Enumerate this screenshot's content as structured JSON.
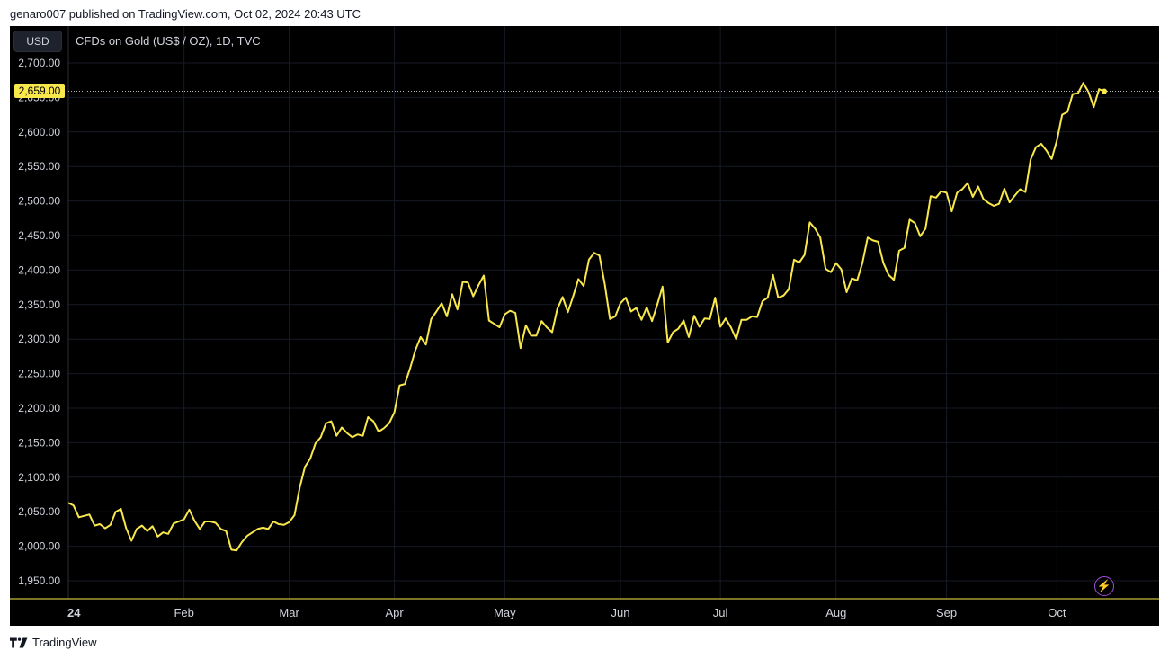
{
  "header": {
    "text": "genaro007 published on TradingView.com, Oct 02, 2024 20:43 UTC"
  },
  "toolbar": {
    "currency_label": "USD"
  },
  "legend": {
    "title": "CFDs on Gold (US$ / OZ), 1D, TVC"
  },
  "last_price": {
    "label": "2,659.00",
    "value": 2659
  },
  "footer": {
    "brand": "TradingView"
  },
  "colors": {
    "line": "#f9e84c",
    "background": "#000000",
    "axis_text": "#d1d4dc",
    "bolt": "#a04fd6"
  },
  "icons": {
    "bolt": "lightning-icon",
    "logo": "tradingview-logo-icon"
  },
  "chart_data": {
    "type": "line",
    "title": "CFDs on Gold (US$ / OZ), 1D, TVC",
    "xlabel": "",
    "ylabel": "",
    "ylim": [
      1930,
      2720
    ],
    "y_ticks": [
      1950,
      2000,
      2050,
      2100,
      2150,
      2200,
      2250,
      2300,
      2350,
      2400,
      2450,
      2500,
      2550,
      2600,
      2650,
      2700
    ],
    "y_tick_labels": [
      "1,950.00",
      "2,000.00",
      "2,050.00",
      "2,100.00",
      "2,150.00",
      "2,200.00",
      "2,250.00",
      "2,300.00",
      "2,350.00",
      "2,400.00",
      "2,450.00",
      "2,500.00",
      "2,550.00",
      "2,600.00",
      "2,650.00",
      "2,700.00"
    ],
    "x_ticks": [
      {
        "label": "24",
        "index": 0
      },
      {
        "label": "Feb",
        "index": 22
      },
      {
        "label": "Mar",
        "index": 42
      },
      {
        "label": "Apr",
        "index": 62
      },
      {
        "label": "May",
        "index": 83
      },
      {
        "label": "Jun",
        "index": 105
      },
      {
        "label": "Jul",
        "index": 124
      },
      {
        "label": "Aug",
        "index": 146
      },
      {
        "label": "Sep",
        "index": 167
      },
      {
        "label": "Oct",
        "index": 188
      }
    ],
    "grid": true,
    "series": [
      {
        "values": [
          2063,
          2059,
          2042,
          2044,
          2046,
          2030,
          2032,
          2026,
          2031,
          2050,
          2054,
          2026,
          2008,
          2025,
          2030,
          2022,
          2029,
          2014,
          2020,
          2018,
          2033,
          2036,
          2039,
          2053,
          2037,
          2025,
          2036,
          2036,
          2034,
          2025,
          2022,
          1995,
          1994,
          2006,
          2015,
          2020,
          2025,
          2027,
          2025,
          2036,
          2032,
          2031,
          2035,
          2045,
          2085,
          2115,
          2127,
          2149,
          2158,
          2178,
          2181,
          2160,
          2172,
          2164,
          2158,
          2162,
          2160,
          2187,
          2181,
          2166,
          2171,
          2178,
          2194,
          2233,
          2235,
          2258,
          2284,
          2303,
          2292,
          2329,
          2340,
          2352,
          2333,
          2365,
          2343,
          2383,
          2382,
          2362,
          2378,
          2392,
          2327,
          2322,
          2317,
          2336,
          2341,
          2338,
          2287,
          2320,
          2305,
          2305,
          2326,
          2317,
          2310,
          2344,
          2361,
          2339,
          2362,
          2387,
          2377,
          2415,
          2425,
          2421,
          2380,
          2329,
          2333,
          2352,
          2360,
          2340,
          2345,
          2328,
          2346,
          2326,
          2350,
          2376,
          2295,
          2310,
          2315,
          2327,
          2303,
          2334,
          2318,
          2330,
          2329,
          2360,
          2318,
          2330,
          2317,
          2300,
          2328,
          2328,
          2333,
          2332,
          2355,
          2360,
          2393,
          2360,
          2363,
          2372,
          2415,
          2411,
          2422,
          2469,
          2460,
          2447,
          2402,
          2397,
          2410,
          2401,
          2368,
          2388,
          2385,
          2410,
          2447,
          2443,
          2441,
          2410,
          2393,
          2386,
          2428,
          2432,
          2473,
          2468,
          2449,
          2460,
          2507,
          2505,
          2514,
          2512,
          2485,
          2512,
          2517,
          2526,
          2506,
          2521,
          2503,
          2497,
          2493,
          2496,
          2518,
          2498,
          2508,
          2517,
          2513,
          2560,
          2578,
          2583,
          2573,
          2561,
          2588,
          2625,
          2629,
          2655,
          2656,
          2671,
          2658,
          2636,
          2662,
          2659
        ]
      }
    ]
  }
}
